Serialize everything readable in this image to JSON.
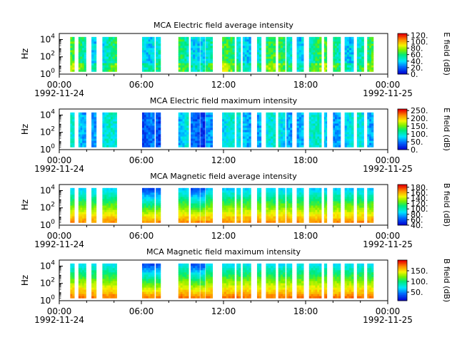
{
  "chart_data": [
    {
      "type": "heatmap",
      "title": "MCA  Electric field average intensity",
      "ylabel": "Hz",
      "y_scale": "log",
      "y_ticks": [
        {
          "base": "10",
          "exp": "0"
        },
        {
          "base": "10",
          "exp": "2"
        },
        {
          "base": "10",
          "exp": "4"
        }
      ],
      "x_range": [
        "1992-11-24T00:00",
        "1992-11-25T00:00"
      ],
      "x_ticks": [
        "00:00",
        "06:00",
        "12:00",
        "18:00",
        "00:00"
      ],
      "x_date_labels": [
        "1992-11-24",
        "1992-11-25"
      ],
      "colorbar": {
        "label": "E field (dB)",
        "range": [
          0,
          125
        ],
        "ticks": [
          "0.",
          "20.",
          "40.",
          "60.",
          "80.",
          "100.",
          "120."
        ]
      },
      "data_intervals_hours": [
        [
          0.8,
          1.1
        ],
        [
          1.4,
          1.95
        ],
        [
          2.35,
          2.7
        ],
        [
          3.15,
          4.2
        ],
        [
          6.05,
          6.95
        ],
        [
          7.05,
          7.4
        ],
        [
          8.7,
          9.45
        ],
        [
          9.6,
          10.25
        ],
        [
          10.3,
          10.65
        ],
        [
          10.7,
          11.2
        ],
        [
          11.9,
          12.8
        ],
        [
          12.95,
          13.25
        ],
        [
          13.4,
          14.0
        ],
        [
          14.45,
          14.75
        ],
        [
          15.1,
          15.8
        ],
        [
          16.0,
          16.5
        ],
        [
          16.6,
          17.0
        ],
        [
          17.35,
          17.85
        ],
        [
          18.25,
          19.15
        ],
        [
          19.35,
          19.55
        ],
        [
          20.0,
          20.55
        ],
        [
          20.85,
          21.5
        ],
        [
          21.75,
          22.25
        ],
        [
          22.5,
          22.95
        ]
      ],
      "y_extent_log10": [
        0.3,
        4.3
      ]
    },
    {
      "type": "heatmap",
      "title": "MCA  Electric field maximum intensity",
      "ylabel": "Hz",
      "y_scale": "log",
      "y_ticks": [
        {
          "base": "10",
          "exp": "0"
        },
        {
          "base": "10",
          "exp": "2"
        },
        {
          "base": "10",
          "exp": "4"
        }
      ],
      "x_range": [
        "1992-11-24T00:00",
        "1992-11-25T00:00"
      ],
      "x_ticks": [
        "00:00",
        "06:00",
        "12:00",
        "18:00",
        "00:00"
      ],
      "x_date_labels": [
        "1992-11-24",
        "1992-11-25"
      ],
      "colorbar": {
        "label": "E field (dB)",
        "range": [
          0,
          260
        ],
        "ticks": [
          "0.",
          "50.",
          "100.",
          "150.",
          "200.",
          "250."
        ]
      },
      "data_intervals_hours": [
        [
          0.8,
          1.1
        ],
        [
          1.4,
          1.95
        ],
        [
          2.35,
          2.7
        ],
        [
          3.15,
          4.2
        ],
        [
          6.05,
          6.95
        ],
        [
          7.05,
          7.4
        ],
        [
          8.7,
          9.45
        ],
        [
          9.6,
          10.25
        ],
        [
          10.3,
          10.65
        ],
        [
          10.7,
          11.2
        ],
        [
          11.9,
          12.8
        ],
        [
          12.95,
          13.25
        ],
        [
          13.4,
          14.0
        ],
        [
          14.45,
          14.75
        ],
        [
          15.1,
          15.8
        ],
        [
          16.0,
          16.5
        ],
        [
          16.6,
          17.0
        ],
        [
          17.35,
          17.85
        ],
        [
          18.25,
          19.15
        ],
        [
          19.35,
          19.55
        ],
        [
          20.0,
          20.55
        ],
        [
          20.85,
          21.5
        ],
        [
          21.75,
          22.25
        ],
        [
          22.5,
          22.95
        ]
      ],
      "y_extent_log10": [
        0.3,
        4.3
      ]
    },
    {
      "type": "heatmap",
      "title": "MCA  Magnetic field average intensity",
      "ylabel": "Hz",
      "y_scale": "log",
      "y_ticks": [
        {
          "base": "10",
          "exp": "0"
        },
        {
          "base": "10",
          "exp": "2"
        },
        {
          "base": "10",
          "exp": "4"
        }
      ],
      "x_range": [
        "1992-11-24T00:00",
        "1992-11-25T00:00"
      ],
      "x_ticks": [
        "00:00",
        "06:00",
        "12:00",
        "18:00",
        "00:00"
      ],
      "x_date_labels": [
        "1992-11-24",
        "1992-11-25"
      ],
      "colorbar": {
        "label": "B field (dB)",
        "range": [
          40,
          190
        ],
        "ticks": [
          "40.",
          "60.",
          "80.",
          "100.",
          "120.",
          "140.",
          "160.",
          "180."
        ]
      },
      "data_intervals_hours": [
        [
          0.8,
          1.1
        ],
        [
          1.4,
          1.95
        ],
        [
          2.35,
          2.7
        ],
        [
          3.15,
          4.2
        ],
        [
          6.05,
          6.95
        ],
        [
          7.05,
          7.4
        ],
        [
          8.7,
          9.45
        ],
        [
          9.6,
          10.25
        ],
        [
          10.3,
          10.65
        ],
        [
          10.7,
          11.2
        ],
        [
          11.9,
          12.8
        ],
        [
          12.95,
          13.25
        ],
        [
          13.4,
          14.0
        ],
        [
          14.45,
          14.75
        ],
        [
          15.1,
          15.8
        ],
        [
          16.0,
          16.5
        ],
        [
          16.6,
          17.0
        ],
        [
          17.35,
          17.85
        ],
        [
          18.25,
          19.15
        ],
        [
          19.35,
          19.55
        ],
        [
          20.0,
          20.55
        ],
        [
          20.85,
          21.5
        ],
        [
          21.75,
          22.25
        ],
        [
          22.5,
          22.95
        ]
      ],
      "y_extent_log10": [
        0.3,
        4.3
      ]
    },
    {
      "type": "heatmap",
      "title": "MCA  Magnetic field maximum intensity",
      "ylabel": "Hz",
      "y_scale": "log",
      "y_ticks": [
        {
          "base": "10",
          "exp": "0"
        },
        {
          "base": "10",
          "exp": "2"
        },
        {
          "base": "10",
          "exp": "4"
        }
      ],
      "x_range": [
        "1992-11-24T00:00",
        "1992-11-25T00:00"
      ],
      "x_ticks": [
        "00:00",
        "06:00",
        "12:00",
        "18:00",
        "00:00"
      ],
      "x_date_labels": [
        "1992-11-24",
        "1992-11-25"
      ],
      "colorbar": {
        "label": "B field (dB)",
        "range": [
          10,
          200
        ],
        "ticks": [
          "50.",
          "100.",
          "150."
        ]
      },
      "data_intervals_hours": [
        [
          0.8,
          1.1
        ],
        [
          1.4,
          1.95
        ],
        [
          2.35,
          2.7
        ],
        [
          3.15,
          4.2
        ],
        [
          6.05,
          6.95
        ],
        [
          7.05,
          7.4
        ],
        [
          8.7,
          9.45
        ],
        [
          9.6,
          10.25
        ],
        [
          10.3,
          10.65
        ],
        [
          10.7,
          11.2
        ],
        [
          11.9,
          12.8
        ],
        [
          12.95,
          13.25
        ],
        [
          13.4,
          14.0
        ],
        [
          14.45,
          14.75
        ],
        [
          15.1,
          15.8
        ],
        [
          16.0,
          16.5
        ],
        [
          16.6,
          17.0
        ],
        [
          17.35,
          17.85
        ],
        [
          18.25,
          19.15
        ],
        [
          19.35,
          19.55
        ],
        [
          20.0,
          20.55
        ],
        [
          20.85,
          21.5
        ],
        [
          21.75,
          22.25
        ],
        [
          22.5,
          22.95
        ]
      ],
      "y_extent_log10": [
        0.3,
        4.3
      ]
    }
  ]
}
